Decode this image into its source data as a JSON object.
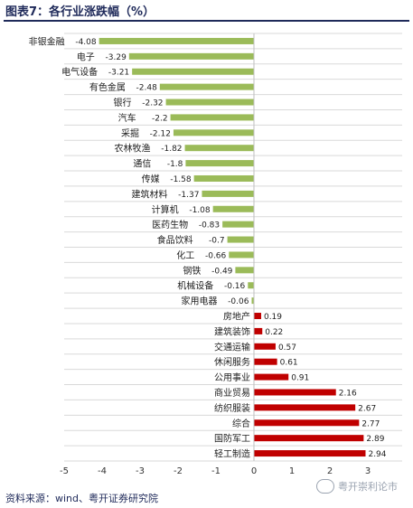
{
  "title": "图表7：各行业涨跌幅（%）",
  "source": "资料来源：wind、粤开证券研究院",
  "watermark": "粤开崇利论市",
  "colors": {
    "negative": "#9bbb59",
    "positive": "#c00000",
    "grid": "#d9d9d9",
    "title": "#1f2a5a"
  },
  "chart_data": {
    "type": "bar",
    "orientation": "horizontal",
    "categories": [
      "非银金融",
      "电子",
      "电气设备",
      "有色金属",
      "银行",
      "汽车",
      "采掘",
      "农林牧渔",
      "通信",
      "传媒",
      "建筑材料",
      "计算机",
      "医药生物",
      "食品饮料",
      "化工",
      "钢铁",
      "机械设备",
      "家用电器",
      "房地产",
      "建筑装饰",
      "交通运输",
      "休闲服务",
      "公用事业",
      "商业贸易",
      "纺织服装",
      "综合",
      "国防军工",
      "轻工制造"
    ],
    "values": [
      -4.08,
      -3.29,
      -3.21,
      -2.48,
      -2.32,
      -2.2,
      -2.12,
      -1.82,
      -1.8,
      -1.58,
      -1.37,
      -1.08,
      -0.83,
      -0.7,
      -0.66,
      -0.49,
      -0.16,
      -0.06,
      0.19,
      0.22,
      0.57,
      0.61,
      0.91,
      2.16,
      2.67,
      2.77,
      2.89,
      2.94
    ],
    "xlim": [
      -5,
      3
    ],
    "xticks": [
      -5,
      -4,
      -3,
      -2,
      -1,
      0,
      1,
      2,
      3
    ],
    "grid": "horizontal"
  }
}
